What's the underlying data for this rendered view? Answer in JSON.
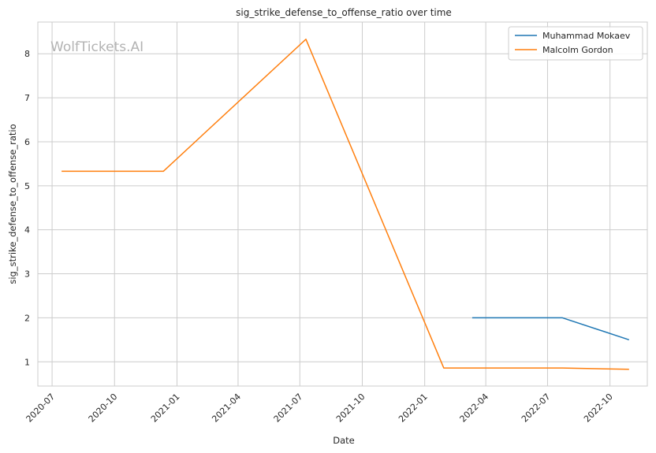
{
  "watermark": "WolfTickets.AI",
  "chart_data": {
    "type": "line",
    "title": "sig_strike_defense_to_offense_ratio over time",
    "xlabel": "Date",
    "ylabel": "sig_strike_defense_to_offense_ratio",
    "x_ticks": [
      "2020-07",
      "2020-10",
      "2021-01",
      "2021-04",
      "2021-07",
      "2021-10",
      "2022-01",
      "2022-04",
      "2022-07",
      "2022-10"
    ],
    "y_ticks": [
      1,
      2,
      3,
      4,
      5,
      6,
      7,
      8
    ],
    "xlim": [
      "2020-06-10",
      "2022-11-25"
    ],
    "ylim": [
      0.45,
      8.72
    ],
    "grid": true,
    "legend_position": "top-right",
    "series": [
      {
        "name": "Muhammad Mokaev",
        "color": "#1f77b4",
        "points": [
          {
            "x": "2022-03-12",
            "y": 2.0
          },
          {
            "x": "2022-07-23",
            "y": 2.0
          },
          {
            "x": "2022-10-29",
            "y": 1.5
          }
        ]
      },
      {
        "name": "Malcolm Gordon",
        "color": "#ff7f0e",
        "points": [
          {
            "x": "2020-07-15",
            "y": 5.33
          },
          {
            "x": "2020-12-12",
            "y": 5.33
          },
          {
            "x": "2021-07-10",
            "y": 8.33
          },
          {
            "x": "2022-01-29",
            "y": 0.86
          },
          {
            "x": "2022-07-23",
            "y": 0.86
          },
          {
            "x": "2022-10-29",
            "y": 0.83
          }
        ]
      }
    ]
  }
}
